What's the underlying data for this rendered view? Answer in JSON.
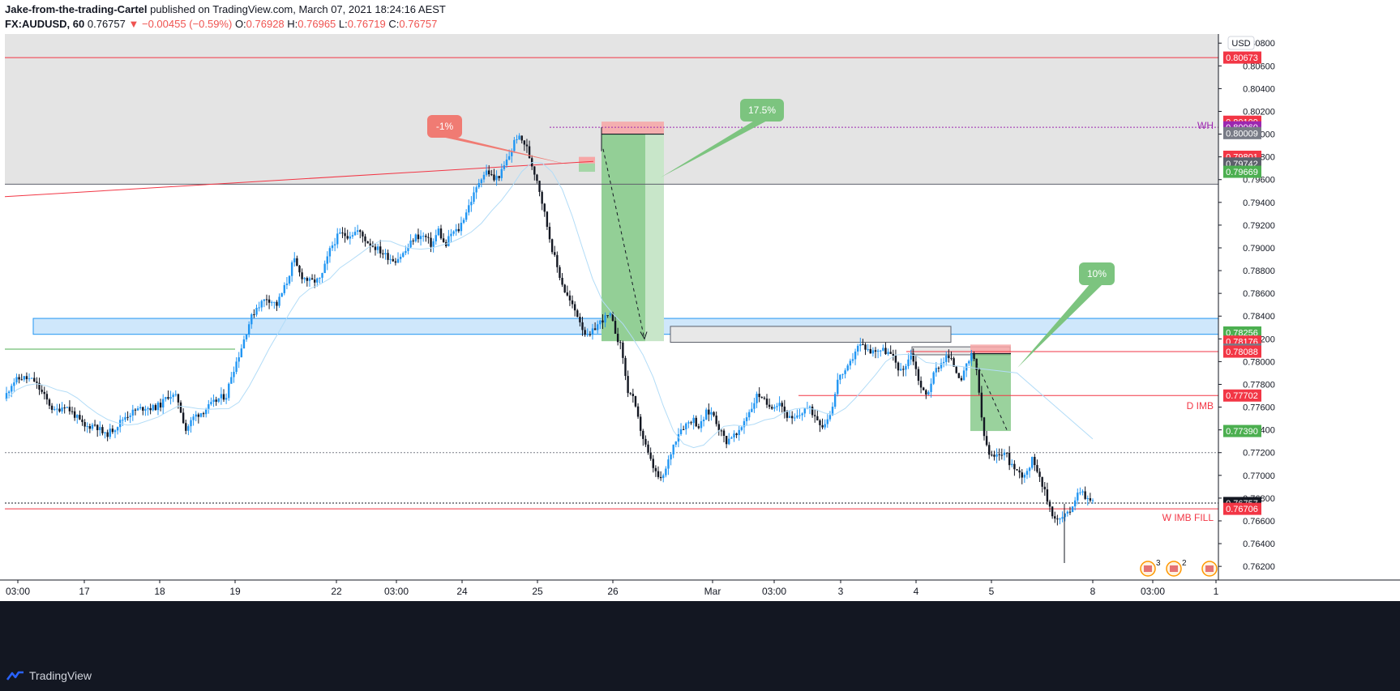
{
  "header": {
    "author": "Jake-from-the-trading-Cartel",
    "published_text": "published on TradingView.com, March 07, 2021 18:24:16 AEST",
    "symbol": "FX:AUDUSD, 60",
    "last_price": "0.76757",
    "change": "−0.00455 (−0.59%)",
    "open_label": "O:",
    "open": "0.76928",
    "high_label": "H:",
    "high": "0.76965",
    "low_label": "L:",
    "low": "0.76719",
    "close_label": "C:",
    "close": "0.76757"
  },
  "footer": {
    "brand": "TradingView"
  },
  "chart_data": {
    "type": "candlestick",
    "symbol": "FX:AUDUSD",
    "interval": "60",
    "currency_label": "USD",
    "ylim": [
      0.7608,
      0.8088
    ],
    "y_ticks": [
      "0.80800",
      "0.80600",
      "0.80400",
      "0.80200",
      "0.80000",
      "0.79800",
      "0.79600",
      "0.79400",
      "0.79200",
      "0.79000",
      "0.78800",
      "0.78600",
      "0.78400",
      "0.78200",
      "0.78000",
      "0.77800",
      "0.77600",
      "0.77400",
      "0.77200",
      "0.77000",
      "0.76800",
      "0.76600",
      "0.76400",
      "0.76200"
    ],
    "x_ticks": [
      "03:00",
      "17",
      "18",
      "19",
      "22",
      "03:00",
      "24",
      "25",
      "26",
      "Mar",
      "03:00",
      "3",
      "4",
      "5",
      "8",
      "03:00",
      "1"
    ],
    "key_anchors": [
      {
        "label": "15 03:00",
        "price_open": 0.7765,
        "price_close": 0.7775
      },
      {
        "label": "17",
        "price": 0.7772
      },
      {
        "label": "18",
        "price": 0.773
      },
      {
        "label": "19",
        "price": 0.7764
      },
      {
        "label": "22 03:00",
        "price": 0.788
      },
      {
        "label": "24",
        "price": 0.7892
      },
      {
        "label": "25 high",
        "price": 0.8005
      },
      {
        "label": "26",
        "price": 0.7912
      },
      {
        "label": "26 low",
        "price": 0.7818
      },
      {
        "label": "Mar low",
        "price": 0.7688
      },
      {
        "label": "3",
        "price": 0.7805
      },
      {
        "label": "4",
        "price": 0.78
      },
      {
        "label": "5",
        "price": 0.7806
      },
      {
        "label": "5 low",
        "price": 0.771
      },
      {
        "label": "8 low",
        "price": 0.7623
      },
      {
        "label": "last close",
        "price": 0.76757
      }
    ],
    "price_labels": [
      {
        "value": "0.80673",
        "color": "#f23645"
      },
      {
        "value": "0.80109",
        "color": "#f23645"
      },
      {
        "value": "0.80060",
        "color": "#9c27b0"
      },
      {
        "value": "0.80009",
        "color": "#787b86"
      },
      {
        "value": "0.79801",
        "color": "#f23645"
      },
      {
        "value": "0.79742",
        "color": "#5d606b"
      },
      {
        "value": "0.79669",
        "color": "#4caf50"
      },
      {
        "value": "0.78256",
        "color": "#4caf50"
      },
      {
        "value": "0.78176",
        "color": "#f23645"
      },
      {
        "value": "0.78105",
        "color": "#787b86"
      },
      {
        "value": "0.78088",
        "color": "#f23645"
      },
      {
        "value": "0.77702",
        "color": "#f23645"
      },
      {
        "value": "0.77390",
        "color": "#4caf50"
      },
      {
        "value": "0.76757",
        "color": "#131722"
      },
      {
        "value": "0.76706",
        "color": "#f23645"
      }
    ],
    "annotations": [
      {
        "text": "-1%",
        "kind": "callout",
        "color": "#f07b73"
      },
      {
        "text": "17.5%",
        "kind": "callout",
        "color": "#7cc47f"
      },
      {
        "text": "10%",
        "kind": "callout",
        "color": "#7cc47f"
      },
      {
        "text": "WH",
        "kind": "level_label",
        "color": "#9c27b0"
      },
      {
        "text": "D IMB",
        "kind": "level_label",
        "color": "#f23645"
      },
      {
        "text": "W IMB FILL",
        "kind": "level_label",
        "color": "#f23645"
      }
    ],
    "horizontal_levels": [
      {
        "price": 0.80673,
        "color": "#f23645"
      },
      {
        "price": 0.8006,
        "color": "#9c27b0",
        "style": "dotted"
      },
      {
        "price": 0.7956,
        "color": "#5d606b"
      },
      {
        "price": 0.78088,
        "color": "#f23645"
      },
      {
        "price": 0.77702,
        "color": "#f23645"
      },
      {
        "price": 0.772,
        "color": "#787b86",
        "style": "dotted"
      },
      {
        "price": 0.76757,
        "color": "#131722",
        "style": "dotted"
      },
      {
        "price": 0.76706,
        "color": "#f23645"
      }
    ],
    "zones": [
      {
        "from": 0.7956,
        "to": 0.8088,
        "color": "#e4e4e4"
      },
      {
        "from": 0.7824,
        "to": 0.7838,
        "color": "#cfe7fb"
      },
      {
        "from": 0.7817,
        "to": 0.7831,
        "color": "#e8e8e8"
      }
    ],
    "trades": [
      {
        "direction": "short",
        "entry": 0.8,
        "stop": 0.8011,
        "target": 0.7818,
        "result": "17.5%"
      },
      {
        "direction": "short",
        "entry": 0.7807,
        "stop": 0.7815,
        "target": 0.7739,
        "result": "10%"
      }
    ],
    "grid": false,
    "legend": "none"
  },
  "colors": {
    "up": "#2196f3",
    "down": "#131722",
    "ma": "#b2dcf7"
  }
}
